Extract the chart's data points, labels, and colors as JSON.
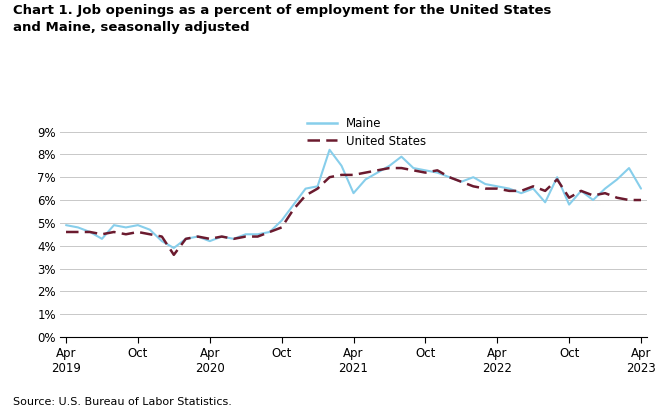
{
  "title": "Chart 1. Job openings as a percent of employment for the United States\nand Maine, seasonally adjusted",
  "source": "Source: U.S. Bureau of Labor Statistics.",
  "maine_color": "#87CEEB",
  "us_color": "#6B1A2E",
  "background_color": "#FFFFFF",
  "grid_color": "#C8C8C8",
  "ylim": [
    0,
    0.09
  ],
  "yticks": [
    0,
    0.01,
    0.02,
    0.03,
    0.04,
    0.05,
    0.06,
    0.07,
    0.08,
    0.09
  ],
  "xtick_labels": [
    "Apr\n2019",
    "Oct",
    "Apr\n2020",
    "Oct",
    "Apr\n2021",
    "Oct",
    "Apr\n2022",
    "Oct",
    "Apr\n2023"
  ],
  "xtick_positions": [
    0,
    6,
    12,
    18,
    24,
    30,
    36,
    42,
    48
  ],
  "maine_data": [
    0.049,
    0.048,
    0.046,
    0.043,
    0.049,
    0.048,
    0.049,
    0.047,
    0.042,
    0.039,
    0.043,
    0.044,
    0.042,
    0.044,
    0.043,
    0.045,
    0.045,
    0.046,
    0.051,
    0.058,
    0.065,
    0.066,
    0.082,
    0.075,
    0.063,
    0.069,
    0.072,
    0.075,
    0.079,
    0.074,
    0.073,
    0.072,
    0.07,
    0.068,
    0.07,
    0.067,
    0.066,
    0.065,
    0.063,
    0.065,
    0.059,
    0.07,
    0.058,
    0.064,
    0.06,
    0.065,
    0.069,
    0.074,
    0.065
  ],
  "us_data": [
    0.046,
    0.046,
    0.046,
    0.045,
    0.046,
    0.045,
    0.046,
    0.045,
    0.044,
    0.036,
    0.043,
    0.044,
    0.043,
    0.044,
    0.043,
    0.044,
    0.044,
    0.046,
    0.048,
    0.056,
    0.062,
    0.065,
    0.07,
    0.071,
    0.071,
    0.072,
    0.073,
    0.074,
    0.074,
    0.073,
    0.072,
    0.073,
    0.07,
    0.068,
    0.066,
    0.065,
    0.065,
    0.064,
    0.064,
    0.066,
    0.064,
    0.069,
    0.061,
    0.064,
    0.062,
    0.063,
    0.061,
    0.06,
    0.06
  ]
}
